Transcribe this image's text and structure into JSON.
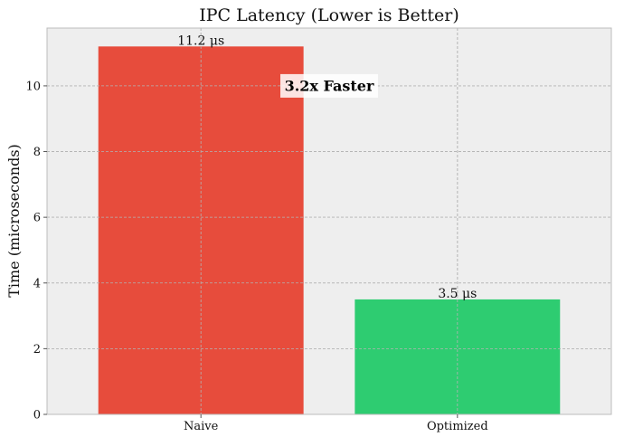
{
  "chart_data": {
    "type": "bar",
    "title": "IPC Latency (Lower is Better)",
    "xlabel": "",
    "ylabel": "Time (microseconds)",
    "categories": [
      "Naive",
      "Optimized"
    ],
    "values": [
      11.2,
      3.5
    ],
    "data_labels": [
      "11.2 μs",
      "3.5 μs"
    ],
    "bar_colors": [
      "#e74c3c",
      "#2ecc71"
    ],
    "ylim": [
      0,
      11.76
    ],
    "yticks": [
      0,
      2,
      4,
      6,
      8,
      10
    ],
    "grid": true,
    "background_color": "#eeeeee",
    "annotation": {
      "text": "3.2x Faster",
      "y": 10.0
    }
  }
}
